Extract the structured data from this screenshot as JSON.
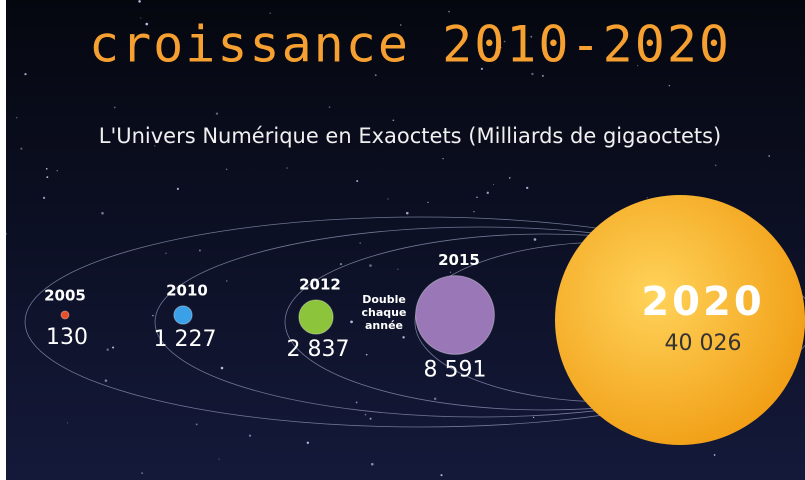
{
  "chart_data": {
    "type": "bubble",
    "title": "croissance 2010-2020",
    "subtitle": "L'Univers Numérique en Exaoctets (Milliards de gigaoctets)",
    "categories": [
      "2005",
      "2010",
      "2012",
      "2015",
      "2020"
    ],
    "values": [
      130,
      1227,
      2837,
      8591,
      40026
    ],
    "value_labels": [
      "130",
      "1 227",
      "2 837",
      "8 591",
      "40 026"
    ],
    "colors": [
      "#e8502a",
      "#3aa0e8",
      "#8cc43c",
      "#9a78b8",
      "#f5a623"
    ],
    "annotation": [
      "Double",
      "chaque",
      "année"
    ]
  }
}
